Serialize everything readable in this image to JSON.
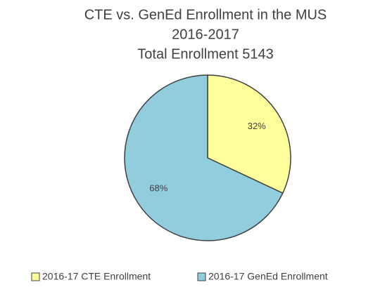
{
  "chart_data": {
    "type": "pie",
    "title": [
      "CTE vs. GenEd Enrollment in the MUS",
      "2016-2017",
      "Total Enrollment 5143"
    ],
    "categories": [
      "2016-17 CTE Enrollment",
      "2016-17 GenEd Enrollment"
    ],
    "values": [
      32,
      68
    ],
    "value_labels": [
      "32%",
      "68%"
    ],
    "colors": [
      "#ffff9c",
      "#92cddd"
    ],
    "legend": "bottom"
  }
}
